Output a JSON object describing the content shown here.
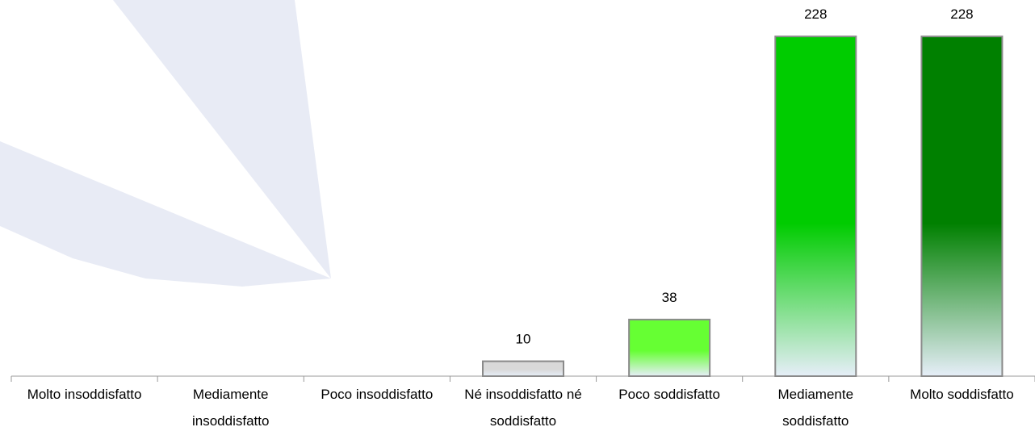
{
  "chart_data": {
    "type": "bar",
    "categories": [
      "Molto insoddisfatto",
      "Mediamente insoddisfatto",
      "Poco insoddisfatto",
      "Né insoddisfatto né soddisfatto",
      "Poco soddisfatto",
      "Mediamente soddisfatto",
      "Molto soddisfatto"
    ],
    "values": [
      null,
      null,
      null,
      10,
      38,
      228,
      228
    ],
    "colors": [
      "#cccccc",
      "#cccccc",
      "#cccccc",
      "#d9d9d9",
      "#66ff33",
      "#00cc00",
      "#008000"
    ],
    "ylim": [
      0,
      240
    ]
  }
}
